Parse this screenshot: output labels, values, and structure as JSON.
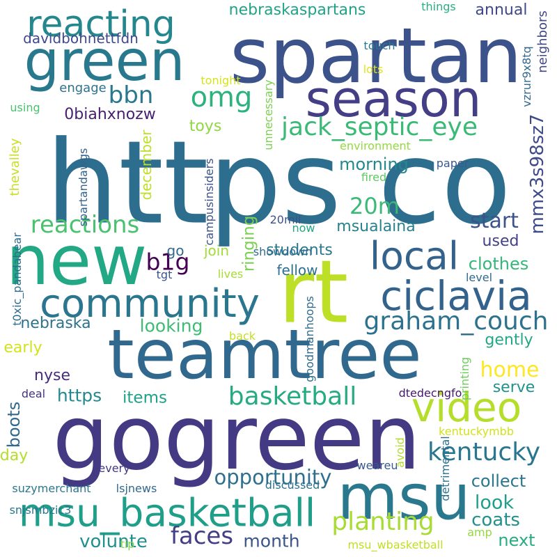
{
  "words": [
    {
      "text": "https co",
      "color": "#2d6e8e"
    },
    {
      "text": "gogreen",
      "color": "#443983"
    },
    {
      "text": "rt",
      "color": "#bddf26"
    },
    {
      "text": "spartan",
      "color": "#3b528b"
    },
    {
      "text": "teamtree",
      "color": "#31688e"
    },
    {
      "text": "new",
      "color": "#22a884"
    },
    {
      "text": "msu",
      "color": "#2a788e"
    },
    {
      "text": "green",
      "color": "#29798e"
    },
    {
      "text": "season",
      "color": "#433e85"
    },
    {
      "text": "community",
      "color": "#2a768e"
    },
    {
      "text": "ciclavia",
      "color": "#33638d"
    },
    {
      "text": "msu_basketball",
      "color": "#1f9e89"
    },
    {
      "text": "video",
      "color": "#b5de2b"
    },
    {
      "text": "local",
      "color": "#33638d"
    },
    {
      "text": "reacting",
      "color": "#24878e"
    },
    {
      "text": "graham_couch",
      "color": "#2c728e"
    },
    {
      "text": "jack_septic_eye",
      "color": "#3aba76"
    },
    {
      "text": "basketball",
      "color": "#25ab82"
    },
    {
      "text": "kentucky",
      "color": "#2a768e"
    },
    {
      "text": "planting",
      "color": "#a8db34"
    },
    {
      "text": "omg",
      "color": "#2db27d"
    },
    {
      "text": "reactions",
      "color": "#4ac16d"
    },
    {
      "text": "faces",
      "color": "#433e85"
    },
    {
      "text": "20m",
      "color": "#3aba76"
    },
    {
      "text": "opportunity",
      "color": "#2e6f8e"
    },
    {
      "text": "start",
      "color": "#3b528b"
    },
    {
      "text": "bbn",
      "color": "#2a788e"
    },
    {
      "text": "b1g",
      "color": "#440154"
    },
    {
      "text": "home",
      "color": "#fde725"
    },
    {
      "text": "mmx3s98sz7",
      "color": "#3e4a89"
    },
    {
      "text": "volunte",
      "color": "#21908d"
    },
    {
      "text": "look",
      "color": "#1f9e89"
    },
    {
      "text": "coats",
      "color": "#21918c"
    },
    {
      "text": "clothes",
      "color": "#35b779"
    },
    {
      "text": "collect",
      "color": "#2a768e"
    },
    {
      "text": "month",
      "color": "#39558c"
    },
    {
      "text": "next",
      "color": "#26ad81"
    },
    {
      "text": "students",
      "color": "#2a788e"
    },
    {
      "text": "morning",
      "color": "#23888e"
    },
    {
      "text": "msualaina",
      "color": "#26828e"
    },
    {
      "text": "nebraskaspartans",
      "color": "#20a386"
    },
    {
      "text": "items",
      "color": "#1fa188"
    },
    {
      "text": "https",
      "color": "#23898e"
    },
    {
      "text": "ringing",
      "color": "#7ad151"
    },
    {
      "text": "toys",
      "color": "#90d743"
    },
    {
      "text": "looking",
      "color": "#3dbc74"
    },
    {
      "text": "nebraska",
      "color": "#2c738e"
    },
    {
      "text": "gently",
      "color": "#22a884"
    },
    {
      "text": "serve",
      "color": "#20928c"
    },
    {
      "text": "nyse",
      "color": "#472d7b"
    },
    {
      "text": "early",
      "color": "#d2e21b"
    },
    {
      "text": "boots",
      "color": "#31688e"
    },
    {
      "text": "day",
      "color": "#b5de2b"
    },
    {
      "text": "0biahxnozw",
      "color": "#481f70"
    },
    {
      "text": "annual",
      "color": "#3f4889"
    },
    {
      "text": "used",
      "color": "#424086"
    },
    {
      "text": "fellow",
      "color": "#2d708e"
    },
    {
      "text": "join",
      "color": "#a2da37"
    },
    {
      "text": "go",
      "color": "#306a8e"
    },
    {
      "text": "december",
      "color": "#bddf26"
    },
    {
      "text": "davidbohnettfdn",
      "color": "#3e4989"
    },
    {
      "text": "engage",
      "color": "#2c728e"
    },
    {
      "text": "neighbors",
      "color": "#3f4788"
    },
    {
      "text": "thevalley",
      "color": "#c8e020"
    },
    {
      "text": "every",
      "color": "#443a83"
    },
    {
      "text": "suzymerchant",
      "color": "#2a788e"
    },
    {
      "text": "lsjnews",
      "color": "#31688e"
    },
    {
      "text": "discussed",
      "color": "#2d708e"
    },
    {
      "text": "weareu",
      "color": "#38598c"
    },
    {
      "text": "detrimental",
      "color": "#2c728e"
    },
    {
      "text": "dtedecngfo",
      "color": "#481769"
    },
    {
      "text": "kentuckymbb",
      "color": "#d2e21b"
    },
    {
      "text": "msu_wbasketball",
      "color": "#c2df23"
    },
    {
      "text": "tip",
      "color": "#84d44b"
    },
    {
      "text": "amp",
      "color": "#95d840"
    },
    {
      "text": "snjsmbzic3",
      "color": "#2b758e"
    },
    {
      "text": "t0xic_pandabear",
      "color": "#2f6b8e"
    },
    {
      "text": "spartandawgs",
      "color": "#33638d"
    },
    {
      "text": "campusinsiders",
      "color": "#3b518b"
    },
    {
      "text": "goodmanhoops",
      "color": "#2f6c8e"
    },
    {
      "text": "printing",
      "color": "#6ccd5a"
    },
    {
      "text": "avoid",
      "color": "#b2dd2d"
    },
    {
      "text": "deal",
      "color": "#46327e"
    },
    {
      "text": "tgt",
      "color": "#3b528b"
    },
    {
      "text": "lives",
      "color": "#a8db34"
    },
    {
      "text": "back",
      "color": "#c5e021"
    },
    {
      "text": "showdown",
      "color": "#2f6b8e"
    },
    {
      "text": "level",
      "color": "#30698e"
    },
    {
      "text": "now",
      "color": "#22a884"
    },
    {
      "text": "20mil",
      "color": "#3b528b"
    },
    {
      "text": "fired",
      "color": "#5ec962"
    },
    {
      "text": "paper",
      "color": "#38598c"
    },
    {
      "text": "environment",
      "color": "#95d840"
    },
    {
      "text": "unnecessary",
      "color": "#7ad151"
    },
    {
      "text": "tonight",
      "color": "#d8e219"
    },
    {
      "text": "lots",
      "color": "#e2e418"
    },
    {
      "text": "touch",
      "color": "#2a788e"
    },
    {
      "text": "things",
      "color": "#29af7f"
    },
    {
      "text": "using",
      "color": "#4ac16d"
    },
    {
      "text": "vzrur9x8tq",
      "color": "#31688e"
    }
  ]
}
